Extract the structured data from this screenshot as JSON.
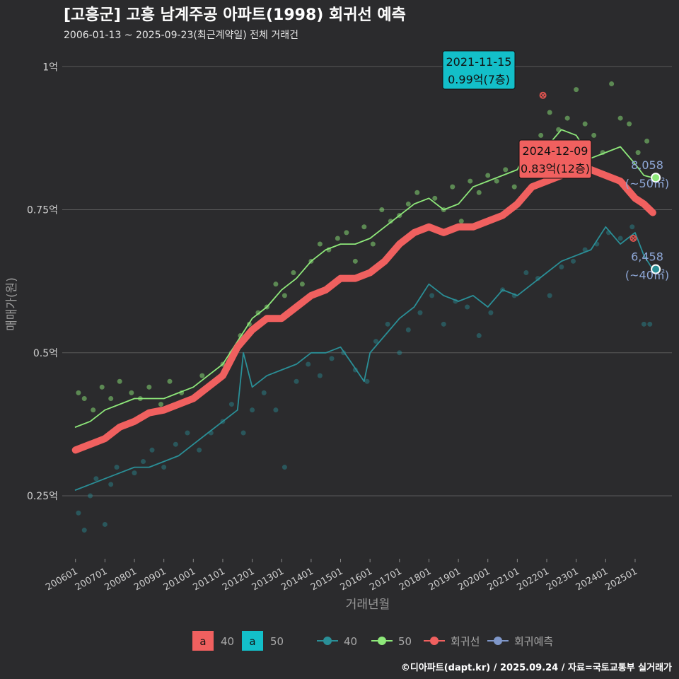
{
  "title": "[고흥군] 고흥 남계주공 아파트(1998) 회귀선 예측",
  "subtitle": "2006-01-13 ~ 2025-09-23(최근계약일) 전체 거래건",
  "credit": "©디아파트(dapt.kr) / 2025.09.24 / 자료=국토교통부 실거래가",
  "colors": {
    "background": "#2b2b2d",
    "grid": "#5a5a5a",
    "series_40": "#2a8f97",
    "series_50": "#8ee87a",
    "regression": "#f0605f",
    "forecast": "#7f97c9",
    "annotation_40": "#f0605f",
    "annotation_50": "#13bfc9"
  },
  "chart_data": {
    "type": "line",
    "title": "[고흥군] 고흥 남계주공 아파트(1998) 회귀선 예측",
    "xlabel": "거래년월",
    "ylabel": "매매가(원)",
    "x_range": [
      "2006-01",
      "2025-09"
    ],
    "ylim": [
      0.14,
      1.03
    ],
    "y_unit": "억",
    "y_ticks": [
      {
        "value": 0.25,
        "label": "0.25억"
      },
      {
        "value": 0.5,
        "label": "0.5억"
      },
      {
        "value": 0.75,
        "label": "0.75억"
      },
      {
        "value": 1.0,
        "label": "1억"
      }
    ],
    "x_ticks": [
      "200601",
      "200701",
      "200801",
      "200901",
      "201001",
      "201101",
      "201201",
      "201301",
      "201401",
      "201501",
      "201601",
      "201701",
      "201801",
      "201901",
      "202001",
      "202101",
      "202201",
      "202301",
      "202401",
      "202501"
    ],
    "grid": true,
    "legend_position": "bottom",
    "series": [
      {
        "name": "40",
        "kind": "line",
        "x": [
          2006.0,
          2006.5,
          2007.0,
          2007.5,
          2008.0,
          2008.5,
          2009.0,
          2009.5,
          2010.0,
          2010.5,
          2011.0,
          2011.5,
          2011.7,
          2012.0,
          2012.5,
          2013.0,
          2013.5,
          2014.0,
          2014.5,
          2015.0,
          2015.4,
          2015.8,
          2016.0,
          2016.5,
          2017.0,
          2017.5,
          2018.0,
          2018.5,
          2019.0,
          2019.5,
          2020.0,
          2020.5,
          2021.0,
          2021.5,
          2022.0,
          2022.5,
          2023.0,
          2023.5,
          2024.0,
          2024.5,
          2025.0,
          2025.3,
          2025.6
        ],
        "y": [
          0.26,
          0.27,
          0.28,
          0.29,
          0.3,
          0.3,
          0.31,
          0.32,
          0.34,
          0.36,
          0.38,
          0.4,
          0.5,
          0.44,
          0.46,
          0.47,
          0.48,
          0.5,
          0.5,
          0.51,
          0.48,
          0.45,
          0.5,
          0.53,
          0.56,
          0.58,
          0.62,
          0.6,
          0.59,
          0.6,
          0.58,
          0.61,
          0.6,
          0.62,
          0.64,
          0.66,
          0.67,
          0.68,
          0.72,
          0.69,
          0.71,
          0.67,
          0.646
        ]
      },
      {
        "name": "50",
        "kind": "line",
        "x": [
          2006.0,
          2006.5,
          2007.0,
          2007.5,
          2008.0,
          2008.5,
          2009.0,
          2009.5,
          2010.0,
          2010.5,
          2011.0,
          2011.5,
          2012.0,
          2012.5,
          2013.0,
          2013.5,
          2014.0,
          2014.5,
          2015.0,
          2015.5,
          2016.0,
          2016.5,
          2017.0,
          2017.5,
          2018.0,
          2018.5,
          2019.0,
          2019.5,
          2020.0,
          2020.5,
          2021.0,
          2021.5,
          2022.0,
          2022.5,
          2023.0,
          2023.5,
          2024.0,
          2024.5,
          2025.0,
          2025.3,
          2025.6
        ],
        "y": [
          0.37,
          0.38,
          0.4,
          0.41,
          0.42,
          0.42,
          0.42,
          0.43,
          0.44,
          0.46,
          0.48,
          0.52,
          0.56,
          0.58,
          0.61,
          0.63,
          0.66,
          0.68,
          0.69,
          0.69,
          0.7,
          0.72,
          0.74,
          0.76,
          0.77,
          0.75,
          0.76,
          0.79,
          0.8,
          0.81,
          0.82,
          0.87,
          0.86,
          0.89,
          0.88,
          0.84,
          0.85,
          0.86,
          0.83,
          0.81,
          0.806
        ]
      },
      {
        "name": "회귀선",
        "kind": "regression",
        "x": [
          2006.0,
          2006.5,
          2007.0,
          2007.5,
          2008.0,
          2008.5,
          2009.0,
          2009.5,
          2010.0,
          2010.5,
          2011.0,
          2011.5,
          2012.0,
          2012.5,
          2013.0,
          2013.5,
          2014.0,
          2014.5,
          2015.0,
          2015.5,
          2016.0,
          2016.5,
          2017.0,
          2017.5,
          2018.0,
          2018.5,
          2019.0,
          2019.5,
          2020.0,
          2020.5,
          2021.0,
          2021.5,
          2022.0,
          2022.5,
          2023.0,
          2023.5,
          2024.0,
          2024.5,
          2025.0,
          2025.3,
          2025.6
        ],
        "y": [
          0.33,
          0.34,
          0.35,
          0.37,
          0.38,
          0.395,
          0.4,
          0.41,
          0.42,
          0.44,
          0.46,
          0.51,
          0.54,
          0.56,
          0.56,
          0.58,
          0.6,
          0.61,
          0.63,
          0.63,
          0.64,
          0.66,
          0.69,
          0.71,
          0.72,
          0.71,
          0.72,
          0.72,
          0.73,
          0.74,
          0.76,
          0.79,
          0.8,
          0.81,
          0.82,
          0.82,
          0.81,
          0.8,
          0.77,
          0.76,
          0.745
        ]
      },
      {
        "name": "회귀예측",
        "kind": "forecast",
        "x": [],
        "y": []
      }
    ],
    "points_40": {
      "x": [
        2006.1,
        2006.3,
        2006.5,
        2006.7,
        2007.0,
        2007.2,
        2007.4,
        2008.0,
        2008.3,
        2008.6,
        2009.0,
        2009.4,
        2009.8,
        2010.2,
        2010.6,
        2011.0,
        2011.3,
        2011.7,
        2012.0,
        2012.4,
        2012.8,
        2013.1,
        2013.5,
        2013.9,
        2014.3,
        2014.7,
        2015.1,
        2015.5,
        2015.9,
        2016.2,
        2016.6,
        2017.0,
        2017.3,
        2017.7,
        2018.1,
        2018.5,
        2018.9,
        2019.3,
        2019.7,
        2020.1,
        2020.5,
        2020.9,
        2021.3,
        2021.7,
        2022.1,
        2022.5,
        2022.9,
        2023.3,
        2023.7,
        2024.1,
        2024.5,
        2024.9,
        2025.3,
        2025.5
      ],
      "y": [
        0.22,
        0.19,
        0.25,
        0.28,
        0.2,
        0.27,
        0.3,
        0.29,
        0.31,
        0.33,
        0.3,
        0.34,
        0.36,
        0.33,
        0.36,
        0.38,
        0.41,
        0.36,
        0.4,
        0.43,
        0.4,
        0.3,
        0.45,
        0.48,
        0.46,
        0.49,
        0.5,
        0.47,
        0.45,
        0.52,
        0.55,
        0.5,
        0.54,
        0.57,
        0.6,
        0.55,
        0.59,
        0.58,
        0.53,
        0.57,
        0.61,
        0.6,
        0.64,
        0.63,
        0.6,
        0.65,
        0.66,
        0.68,
        0.69,
        0.71,
        0.7,
        0.72,
        0.55,
        0.55
      ]
    },
    "points_50": {
      "x": [
        2006.1,
        2006.3,
        2006.6,
        2006.9,
        2007.2,
        2007.5,
        2007.9,
        2008.2,
        2008.5,
        2008.9,
        2009.2,
        2009.6,
        2010.0,
        2010.3,
        2010.7,
        2011.0,
        2011.3,
        2011.6,
        2011.9,
        2012.2,
        2012.5,
        2012.8,
        2013.1,
        2013.4,
        2013.7,
        2014.0,
        2014.3,
        2014.6,
        2014.9,
        2015.2,
        2015.5,
        2015.8,
        2016.1,
        2016.4,
        2016.7,
        2017.0,
        2017.3,
        2017.6,
        2017.9,
        2018.2,
        2018.5,
        2018.8,
        2019.1,
        2019.4,
        2019.7,
        2020.0,
        2020.3,
        2020.6,
        2020.9,
        2021.2,
        2021.5,
        2021.8,
        2022.1,
        2022.4,
        2022.7,
        2023.0,
        2023.3,
        2023.6,
        2023.9,
        2024.2,
        2024.5,
        2024.8,
        2025.1,
        2025.4
      ],
      "y": [
        0.43,
        0.42,
        0.4,
        0.44,
        0.42,
        0.45,
        0.43,
        0.42,
        0.44,
        0.41,
        0.45,
        0.43,
        0.42,
        0.46,
        0.45,
        0.48,
        0.5,
        0.53,
        0.55,
        0.57,
        0.58,
        0.62,
        0.6,
        0.64,
        0.62,
        0.66,
        0.69,
        0.68,
        0.7,
        0.71,
        0.66,
        0.72,
        0.69,
        0.75,
        0.73,
        0.74,
        0.76,
        0.78,
        0.72,
        0.77,
        0.75,
        0.79,
        0.73,
        0.8,
        0.78,
        0.81,
        0.8,
        0.82,
        0.79,
        0.84,
        0.86,
        0.88,
        0.92,
        0.89,
        0.91,
        0.96,
        0.9,
        0.88,
        0.85,
        0.97,
        0.91,
        0.9,
        0.85,
        0.87
      ]
    },
    "annotations": [
      {
        "date": "2021-11-15",
        "value": "0.99억(7층)",
        "x": 2021.87,
        "y": 0.95,
        "series": "50"
      },
      {
        "date": "2024-12-09",
        "value": "0.83억(12층)",
        "x": 2024.94,
        "y": 0.7,
        "series": "40"
      }
    ],
    "end_labels": [
      {
        "value": "8,058",
        "unit": "(~50㎡)",
        "series": "50",
        "x": 2025.7,
        "y": 0.806
      },
      {
        "value": "6,458",
        "unit": "(~40㎡)",
        "series": "40",
        "x": 2025.7,
        "y": 0.646
      }
    ]
  },
  "legend": {
    "fill_items": [
      {
        "key": "a",
        "label": "40",
        "color": "#f0605f"
      },
      {
        "key": "a",
        "label": "50",
        "color": "#13bfc9"
      }
    ],
    "line_items": [
      {
        "label": "40",
        "color": "#2a8f97"
      },
      {
        "label": "50",
        "color": "#8ee87a"
      },
      {
        "label": "회귀선",
        "color": "#f0605f"
      },
      {
        "label": "회귀예측",
        "color": "#7f97c9"
      }
    ]
  }
}
